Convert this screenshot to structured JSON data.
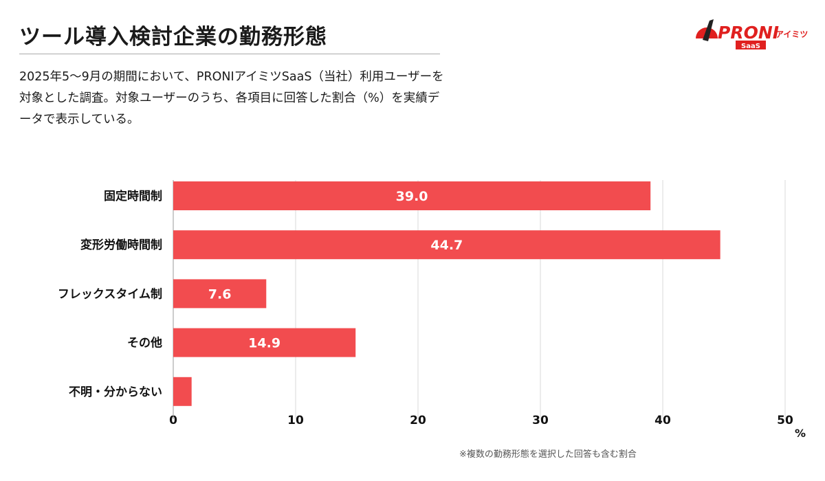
{
  "header": {
    "title": "ツール導入検討企業の勤務形態",
    "description": "2025年5〜9月の期間において、PRONIアイミツSaaS（当社）利用ユーザーを対象とした調査。対象ユーザーのうち、各項目に回答した割合（%）を実績データで表示している。"
  },
  "logo": {
    "text": "PRONI",
    "sub": "アイミツ",
    "badge": "SaaS",
    "color": "#e0201f"
  },
  "footnote": "※複数の勤務形態を選択した回答も含む割合",
  "chart_data": {
    "type": "bar",
    "orientation": "horizontal",
    "categories": [
      "固定時間制",
      "変形労働時間制",
      "フレックスタイム制",
      "その他",
      "不明・分からない"
    ],
    "values": [
      39.0,
      44.7,
      7.6,
      14.9,
      1.5
    ],
    "data_labels": [
      "39.0",
      "44.7",
      "7.6",
      "14.9",
      ""
    ],
    "xlim": [
      0,
      50
    ],
    "xticks": [
      "0",
      "10",
      "20",
      "30",
      "40",
      "50"
    ],
    "xunit": "%",
    "grid": true,
    "bar_color": "#f24c4f",
    "grid_color": "#d9d9d9"
  }
}
